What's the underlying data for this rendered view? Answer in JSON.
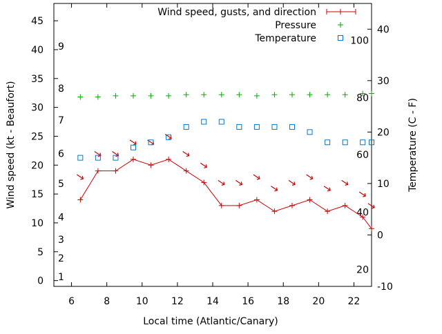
{
  "chart_data": {
    "type": "line",
    "xlabel": "Local time (Atlantic/Canary)",
    "ylabel_left": "Wind speed (kt - Beaufort)",
    "ylabel_right": "Temperature (C - F)",
    "xlim": [
      5,
      23
    ],
    "ylim_left": [
      -1,
      48
    ],
    "ylim_right": [
      -10,
      45
    ],
    "x_ticks": [
      6,
      8,
      10,
      12,
      14,
      16,
      18,
      20,
      22
    ],
    "y_left_ticks": [
      0,
      5,
      10,
      15,
      20,
      25,
      30,
      35,
      40,
      45
    ],
    "y_right_ticks": [
      -10,
      0,
      10,
      20,
      30,
      40
    ],
    "beaufort_labels": [
      {
        "text": "1",
        "wind_kt": 0.7
      },
      {
        "text": "2",
        "wind_kt": 3.9
      },
      {
        "text": "3",
        "wind_kt": 7.1
      },
      {
        "text": "4",
        "wind_kt": 11.0
      },
      {
        "text": "5",
        "wind_kt": 16.8
      },
      {
        "text": "6",
        "wind_kt": 22.0
      },
      {
        "text": "7",
        "wind_kt": 27.8
      },
      {
        "text": "8",
        "wind_kt": 33.3
      },
      {
        "text": "9",
        "wind_kt": 40.6
      }
    ],
    "fahrenheit_labels": [
      {
        "text": "20",
        "temp_c": -6.7
      },
      {
        "text": "40",
        "temp_c": 4.4
      },
      {
        "text": "60",
        "temp_c": 15.6
      },
      {
        "text": "80",
        "temp_c": 26.7
      },
      {
        "text": "100",
        "temp_c": 37.8
      }
    ],
    "legend": {
      "position": "top-right",
      "entries": [
        "Wind speed, gusts, and direction",
        "Pressure",
        "Temperature"
      ]
    },
    "series": [
      {
        "name": "Wind speed, gusts, and direction",
        "axis": "left",
        "color": "#cc0000",
        "marker": "plus-line",
        "x": [
          6.5,
          7.5,
          8.5,
          9.5,
          10.5,
          11.5,
          12.5,
          13.5,
          14.5,
          15.5,
          16.5,
          17.5,
          18.5,
          19.5,
          20.5,
          21.5,
          22.5,
          23
        ],
        "y": [
          14,
          19,
          19,
          21,
          20,
          21,
          19,
          17,
          13,
          13,
          14,
          12,
          13,
          14,
          12,
          13,
          11,
          9
        ]
      },
      {
        "name": "Wind direction arrows",
        "axis": "left",
        "color": "#cc0000",
        "x": [
          6.5,
          7.5,
          8.5,
          9.5,
          10.5,
          11.5,
          12.5,
          13.5,
          14.5,
          15.5,
          16.5,
          17.5,
          18.5,
          19.5,
          20.5,
          21.5,
          22.5,
          23
        ],
        "y": [
          18,
          22,
          22,
          24,
          24,
          25,
          22,
          20,
          17,
          17,
          18,
          16,
          17,
          18,
          16,
          17,
          15,
          13
        ]
      },
      {
        "name": "Pressure",
        "axis": "left",
        "color": "#00aa00",
        "marker": "plus",
        "x": [
          6.5,
          7.5,
          8.5,
          9.5,
          10.5,
          11.5,
          12.5,
          13.5,
          14.5,
          15.5,
          16.5,
          17.5,
          18.5,
          19.5,
          20.5,
          21.5,
          22.5,
          23
        ],
        "y": [
          31.8,
          31.8,
          32,
          32,
          32,
          32,
          32.2,
          32.2,
          32.2,
          32.2,
          32,
          32.2,
          32.2,
          32.2,
          32.2,
          32.2,
          32.4,
          32.4
        ]
      },
      {
        "name": "Temperature",
        "axis": "right",
        "color": "#0077cc",
        "marker": "square",
        "x": [
          6.5,
          7.5,
          8.5,
          9.5,
          10.5,
          11.5,
          12.5,
          13.5,
          14.5,
          15.5,
          16.5,
          17.5,
          18.5,
          19.5,
          20.5,
          21.5,
          22.5,
          23
        ],
        "y": [
          15,
          15,
          15,
          17,
          18,
          19,
          21,
          22,
          22,
          21,
          21,
          21,
          21,
          20,
          18,
          18,
          18,
          18
        ]
      }
    ]
  }
}
